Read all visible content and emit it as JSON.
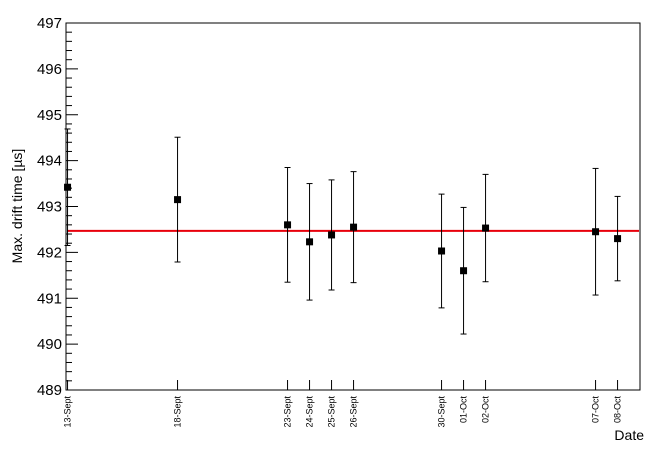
{
  "chart_data": {
    "type": "scatter",
    "ylabel": "Max. drift time [µs]",
    "xlabel": "Date",
    "ylim": [
      489,
      497
    ],
    "y_major_ticks": [
      "489",
      "490",
      "491",
      "492",
      "493",
      "494",
      "495",
      "496",
      "497"
    ],
    "categories": [
      "13-Sept",
      "18-Sept",
      "23-Sept",
      "24-Sept",
      "25-Sept",
      "26-Sept",
      "30-Sept",
      "01-Oct",
      "02-Oct",
      "07-Oct",
      "08-Oct"
    ],
    "x_day_index": [
      13,
      18,
      23,
      24,
      25,
      26,
      30,
      31,
      32,
      37,
      38
    ],
    "values": [
      493.42,
      493.15,
      492.6,
      492.23,
      492.38,
      492.55,
      492.03,
      491.6,
      492.53,
      492.45,
      492.3
    ],
    "errors": [
      1.27,
      1.36,
      1.25,
      1.27,
      1.2,
      1.21,
      1.24,
      1.38,
      1.17,
      1.38,
      0.92
    ],
    "reference_line": {
      "value": 492.47,
      "color": "#e8000b"
    },
    "marker_color": "#000000",
    "grid": false
  }
}
